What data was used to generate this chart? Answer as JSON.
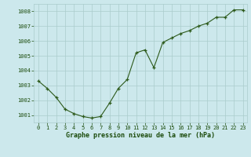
{
  "x": [
    0,
    1,
    2,
    3,
    4,
    5,
    6,
    7,
    8,
    9,
    10,
    11,
    12,
    13,
    14,
    15,
    16,
    17,
    18,
    19,
    20,
    21,
    22,
    23
  ],
  "y": [
    1003.3,
    1002.8,
    1002.2,
    1001.4,
    1001.1,
    1000.9,
    1000.8,
    1000.9,
    1001.8,
    1002.8,
    1003.4,
    1005.2,
    1005.4,
    1004.2,
    1005.9,
    1006.2,
    1006.5,
    1006.7,
    1007.0,
    1007.2,
    1007.6,
    1007.6,
    1008.1,
    1008.1
  ],
  "line_color": "#2d5a1b",
  "marker_color": "#2d5a1b",
  "bg_color": "#cce8ec",
  "grid_color": "#aacccc",
  "xlabel": "Graphe pression niveau de la mer (hPa)",
  "xlabel_color": "#1a4a0a",
  "tick_color": "#1a4a0a",
  "ylim": [
    1000.5,
    1008.5
  ],
  "xlim": [
    -0.5,
    23.5
  ],
  "yticks": [
    1001,
    1002,
    1003,
    1004,
    1005,
    1006,
    1007,
    1008
  ],
  "xticks": [
    0,
    1,
    2,
    3,
    4,
    5,
    6,
    7,
    8,
    9,
    10,
    11,
    12,
    13,
    14,
    15,
    16,
    17,
    18,
    19,
    20,
    21,
    22,
    23
  ],
  "figsize": [
    3.2,
    2.0
  ],
  "dpi": 100
}
